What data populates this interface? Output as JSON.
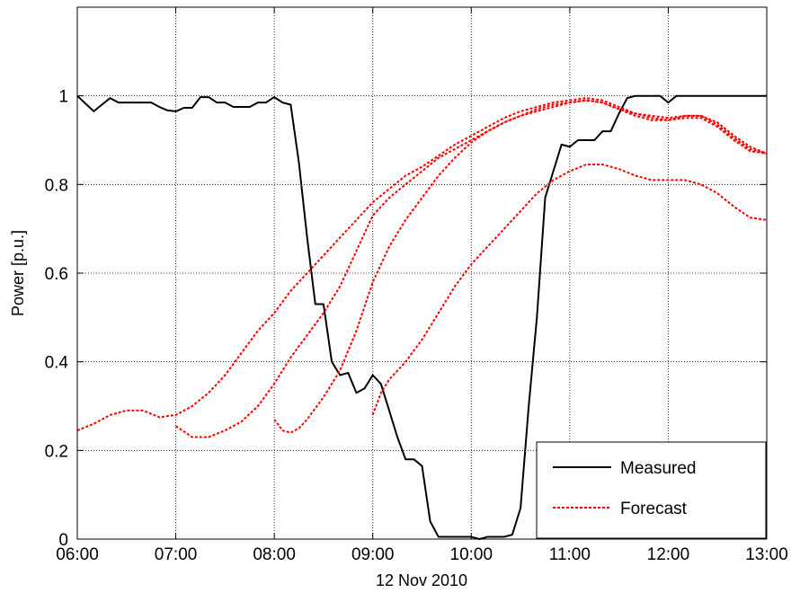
{
  "chart_data": {
    "type": "line",
    "title": "",
    "xlabel": "12 Nov 2010",
    "ylabel": "Power [p.u.]",
    "xlim": [
      "06:00",
      "13:00"
    ],
    "ylim": [
      0,
      1.2
    ],
    "x_ticks": [
      "06:00",
      "07:00",
      "08:00",
      "09:00",
      "10:00",
      "11:00",
      "12:00",
      "13:00"
    ],
    "y_ticks": [
      "0",
      "0.2",
      "0.4",
      "0.6",
      "0.8",
      "1"
    ],
    "grid": true,
    "legend": {
      "placement": "bottom-right",
      "entries": [
        "Measured",
        "Forecast"
      ]
    },
    "colors": {
      "measured": "#000000",
      "forecast": "#ff0000"
    },
    "series": [
      {
        "name": "Measured",
        "style": "solid",
        "points": [
          [
            "06:00",
            1.0
          ],
          [
            "06:10",
            0.965
          ],
          [
            "06:20",
            0.995
          ],
          [
            "06:25",
            0.985
          ],
          [
            "06:35",
            0.985
          ],
          [
            "06:45",
            0.985
          ],
          [
            "06:50",
            0.975
          ],
          [
            "06:55",
            0.967
          ],
          [
            "07:00",
            0.965
          ],
          [
            "07:05",
            0.973
          ],
          [
            "07:10",
            0.973
          ],
          [
            "07:15",
            0.997
          ],
          [
            "07:20",
            0.997
          ],
          [
            "07:25",
            0.985
          ],
          [
            "07:30",
            0.985
          ],
          [
            "07:35",
            0.975
          ],
          [
            "07:40",
            0.975
          ],
          [
            "07:45",
            0.975
          ],
          [
            "07:50",
            0.985
          ],
          [
            "07:55",
            0.985
          ],
          [
            "08:00",
            0.997
          ],
          [
            "08:05",
            0.985
          ],
          [
            "08:10",
            0.98
          ],
          [
            "08:15",
            0.85
          ],
          [
            "08:20",
            0.68
          ],
          [
            "08:25",
            0.53
          ],
          [
            "08:30",
            0.53
          ],
          [
            "08:35",
            0.4
          ],
          [
            "08:40",
            0.37
          ],
          [
            "08:45",
            0.375
          ],
          [
            "08:50",
            0.33
          ],
          [
            "08:55",
            0.34
          ],
          [
            "09:00",
            0.37
          ],
          [
            "09:05",
            0.35
          ],
          [
            "09:10",
            0.29
          ],
          [
            "09:15",
            0.23
          ],
          [
            "09:20",
            0.18
          ],
          [
            "09:25",
            0.18
          ],
          [
            "09:30",
            0.165
          ],
          [
            "09:35",
            0.04
          ],
          [
            "09:40",
            0.005
          ],
          [
            "09:50",
            0.005
          ],
          [
            "10:00",
            0.005
          ],
          [
            "10:05",
            0.0
          ],
          [
            "10:10",
            0.005
          ],
          [
            "10:20",
            0.005
          ],
          [
            "10:25",
            0.01
          ],
          [
            "10:30",
            0.07
          ],
          [
            "10:35",
            0.3
          ],
          [
            "10:40",
            0.5
          ],
          [
            "10:45",
            0.77
          ],
          [
            "10:50",
            0.83
          ],
          [
            "10:55",
            0.89
          ],
          [
            "11:00",
            0.885
          ],
          [
            "11:05",
            0.9
          ],
          [
            "11:10",
            0.9
          ],
          [
            "11:15",
            0.9
          ],
          [
            "11:20",
            0.92
          ],
          [
            "11:25",
            0.92
          ],
          [
            "11:30",
            0.96
          ],
          [
            "11:35",
            0.995
          ],
          [
            "11:40",
            1.0
          ],
          [
            "11:45",
            1.0
          ],
          [
            "11:50",
            1.0
          ],
          [
            "11:55",
            1.0
          ],
          [
            "12:00",
            0.985
          ],
          [
            "12:05",
            1.0
          ],
          [
            "12:30",
            1.0
          ],
          [
            "13:00",
            1.0
          ]
        ]
      },
      {
        "name": "Forecast",
        "style": "dashed",
        "points": [
          [
            "06:00",
            0.245
          ],
          [
            "06:10",
            0.26
          ],
          [
            "06:20",
            0.28
          ],
          [
            "06:30",
            0.29
          ],
          [
            "06:40",
            0.29
          ],
          [
            "06:50",
            0.275
          ],
          [
            "07:00",
            0.28
          ],
          [
            "07:10",
            0.3
          ],
          [
            "07:20",
            0.33
          ],
          [
            "07:30",
            0.37
          ],
          [
            "07:40",
            0.42
          ],
          [
            "07:50",
            0.47
          ],
          [
            "08:00",
            0.51
          ],
          [
            "08:10",
            0.56
          ],
          [
            "08:20",
            0.6
          ],
          [
            "08:30",
            0.64
          ],
          [
            "08:40",
            0.68
          ],
          [
            "08:50",
            0.72
          ],
          [
            "09:00",
            0.76
          ],
          [
            "09:10",
            0.79
          ],
          [
            "09:20",
            0.82
          ],
          [
            "09:30",
            0.84
          ],
          [
            "09:40",
            0.865
          ],
          [
            "09:50",
            0.89
          ],
          [
            "10:00",
            0.91
          ],
          [
            "10:10",
            0.93
          ],
          [
            "10:20",
            0.95
          ],
          [
            "10:30",
            0.965
          ],
          [
            "10:40",
            0.975
          ],
          [
            "10:50",
            0.985
          ],
          [
            "11:00",
            0.99
          ],
          [
            "11:10",
            0.995
          ],
          [
            "11:20",
            0.99
          ],
          [
            "11:30",
            0.975
          ],
          [
            "11:40",
            0.96
          ],
          [
            "11:50",
            0.95
          ],
          [
            "12:00",
            0.945
          ],
          [
            "12:10",
            0.955
          ],
          [
            "12:20",
            0.955
          ],
          [
            "12:30",
            0.94
          ],
          [
            "12:40",
            0.91
          ],
          [
            "12:50",
            0.885
          ],
          [
            "13:00",
            0.87
          ]
        ]
      },
      {
        "name": "",
        "style": "dashed",
        "points": [
          [
            "07:00",
            0.255
          ],
          [
            "07:10",
            0.23
          ],
          [
            "07:20",
            0.23
          ],
          [
            "07:30",
            0.245
          ],
          [
            "07:40",
            0.265
          ],
          [
            "07:50",
            0.3
          ],
          [
            "08:00",
            0.35
          ],
          [
            "08:10",
            0.41
          ],
          [
            "08:20",
            0.46
          ],
          [
            "08:30",
            0.51
          ],
          [
            "08:40",
            0.57
          ],
          [
            "08:50",
            0.65
          ],
          [
            "09:00",
            0.73
          ],
          [
            "09:10",
            0.77
          ],
          [
            "09:20",
            0.8
          ],
          [
            "09:30",
            0.83
          ],
          [
            "09:40",
            0.86
          ],
          [
            "09:50",
            0.88
          ],
          [
            "10:00",
            0.9
          ],
          [
            "10:10",
            0.92
          ],
          [
            "10:20",
            0.94
          ],
          [
            "10:30",
            0.955
          ],
          [
            "10:40",
            0.965
          ],
          [
            "10:50",
            0.975
          ],
          [
            "11:00",
            0.985
          ],
          [
            "11:10",
            0.99
          ],
          [
            "11:20",
            0.985
          ],
          [
            "11:30",
            0.97
          ],
          [
            "11:40",
            0.955
          ],
          [
            "11:50",
            0.945
          ],
          [
            "12:00",
            0.945
          ],
          [
            "12:10",
            0.95
          ],
          [
            "12:20",
            0.95
          ],
          [
            "12:30",
            0.93
          ],
          [
            "12:40",
            0.9
          ],
          [
            "12:50",
            0.875
          ],
          [
            "13:00",
            0.87
          ]
        ]
      },
      {
        "name": "",
        "style": "dashed",
        "points": [
          [
            "08:00",
            0.27
          ],
          [
            "08:05",
            0.245
          ],
          [
            "08:10",
            0.24
          ],
          [
            "08:15",
            0.25
          ],
          [
            "08:20",
            0.27
          ],
          [
            "08:30",
            0.32
          ],
          [
            "08:40",
            0.38
          ],
          [
            "08:50",
            0.47
          ],
          [
            "09:00",
            0.58
          ],
          [
            "09:10",
            0.66
          ],
          [
            "09:20",
            0.72
          ],
          [
            "09:30",
            0.77
          ],
          [
            "09:40",
            0.82
          ],
          [
            "09:50",
            0.86
          ],
          [
            "10:00",
            0.895
          ],
          [
            "10:10",
            0.92
          ],
          [
            "10:20",
            0.94
          ],
          [
            "10:30",
            0.955
          ],
          [
            "10:40",
            0.97
          ],
          [
            "10:50",
            0.98
          ],
          [
            "11:00",
            0.985
          ],
          [
            "11:10",
            0.99
          ],
          [
            "11:20",
            0.985
          ],
          [
            "11:30",
            0.97
          ],
          [
            "11:40",
            0.96
          ],
          [
            "11:50",
            0.955
          ],
          [
            "12:00",
            0.95
          ],
          [
            "12:10",
            0.955
          ],
          [
            "12:20",
            0.955
          ],
          [
            "12:30",
            0.935
          ],
          [
            "12:40",
            0.905
          ],
          [
            "12:50",
            0.88
          ],
          [
            "13:00",
            0.87
          ]
        ]
      },
      {
        "name": "",
        "style": "dashed",
        "points": [
          [
            "09:00",
            0.28
          ],
          [
            "09:05",
            0.33
          ],
          [
            "09:10",
            0.36
          ],
          [
            "09:20",
            0.4
          ],
          [
            "09:30",
            0.45
          ],
          [
            "09:40",
            0.51
          ],
          [
            "09:50",
            0.57
          ],
          [
            "10:00",
            0.62
          ],
          [
            "10:10",
            0.66
          ],
          [
            "10:20",
            0.7
          ],
          [
            "10:30",
            0.74
          ],
          [
            "10:40",
            0.78
          ],
          [
            "10:50",
            0.81
          ],
          [
            "11:00",
            0.83
          ],
          [
            "11:10",
            0.845
          ],
          [
            "11:20",
            0.845
          ],
          [
            "11:30",
            0.835
          ],
          [
            "11:40",
            0.82
          ],
          [
            "11:50",
            0.81
          ],
          [
            "12:00",
            0.81
          ],
          [
            "12:10",
            0.81
          ],
          [
            "12:20",
            0.8
          ],
          [
            "12:30",
            0.78
          ],
          [
            "12:40",
            0.75
          ],
          [
            "12:50",
            0.725
          ],
          [
            "13:00",
            0.72
          ]
        ]
      }
    ]
  }
}
